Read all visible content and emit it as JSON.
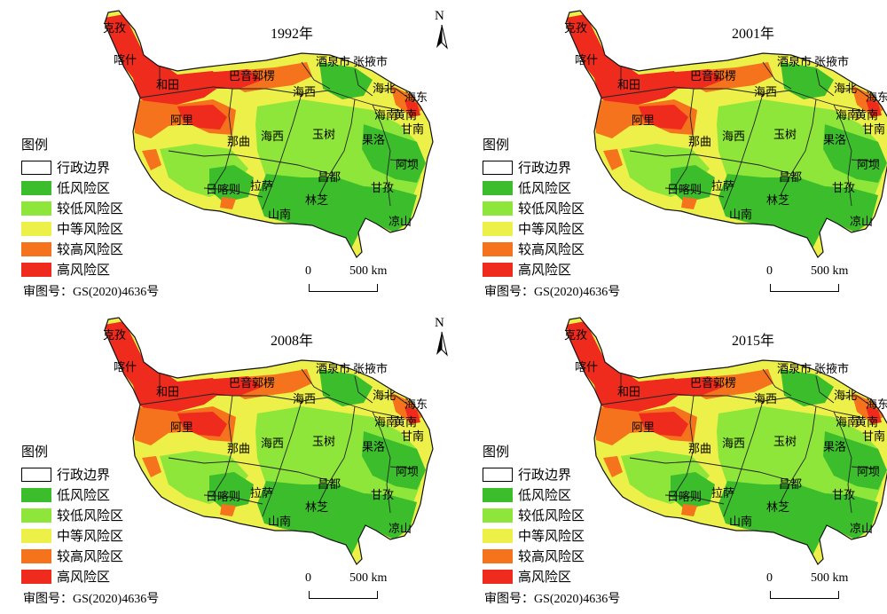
{
  "review_number": "审图号：GS(2020)4636号",
  "north_label": "N",
  "scale": {
    "zero": "0",
    "distance": "500 km"
  },
  "legend": {
    "title": "图例",
    "items": [
      {
        "label": "行政边界",
        "color": "#ffffff"
      },
      {
        "label": "低风险区",
        "color": "#3cbe2c"
      },
      {
        "label": "较低风险区",
        "color": "#8ee63a"
      },
      {
        "label": "中等风险区",
        "color": "#eef04a"
      },
      {
        "label": "较高风险区",
        "color": "#f5731d"
      },
      {
        "label": "高风险区",
        "color": "#ee2b1c"
      }
    ]
  },
  "region_labels": [
    "克孜",
    "喀什",
    "和田",
    "巴音郭楞",
    "酒泉市",
    "张掖市",
    "海西",
    "海北",
    "海东",
    "海南",
    "黄南",
    "甘南",
    "阿里",
    "那曲",
    "海西",
    "玉树",
    "果洛",
    "阿坝",
    "昌都",
    "甘孜",
    "日喀则",
    "拉萨",
    "山南",
    "林芝",
    "凉山"
  ],
  "panels": [
    {
      "year": "1992年"
    },
    {
      "year": "2001年"
    },
    {
      "year": "2008年"
    },
    {
      "year": "2015年"
    }
  ]
}
